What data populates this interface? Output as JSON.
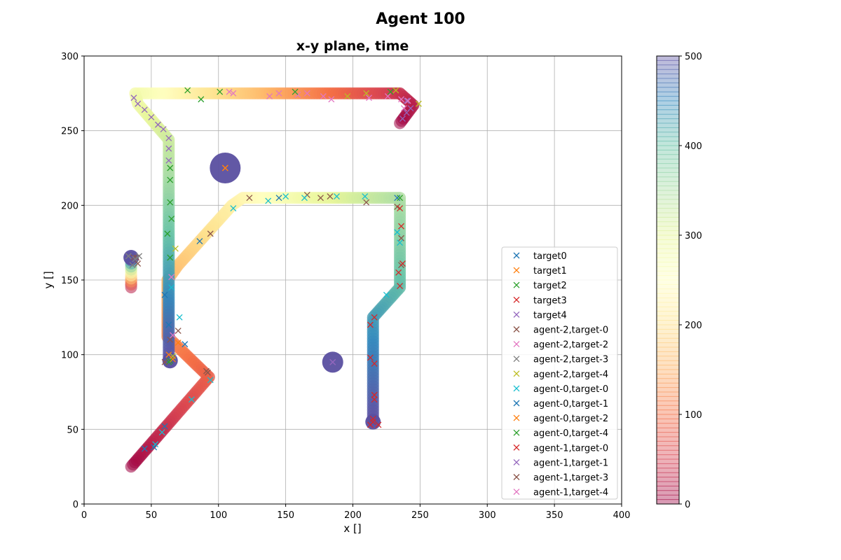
{
  "figure": {
    "suptitle": "Agent 100"
  },
  "chart_data": {
    "type": "scatter",
    "title": "x-y plane, time",
    "xlabel": "x []",
    "ylabel": "y []",
    "xlim": [
      0,
      400
    ],
    "ylim": [
      0,
      300
    ],
    "xticks": [
      0,
      50,
      100,
      150,
      200,
      250,
      300,
      350,
      400
    ],
    "yticks": [
      0,
      50,
      100,
      150,
      200,
      250,
      300
    ],
    "grid": true,
    "legend_position": "center-right",
    "colorbar": {
      "range": [
        0,
        500
      ],
      "ticks": [
        0,
        100,
        200,
        300,
        400,
        500
      ],
      "colormap": "Spectral",
      "alpha": 0.4
    },
    "trajectories": [
      {
        "time_range": [
          0,
          500
        ],
        "points": [
          [
            35,
            25
          ],
          [
            93,
            85
          ],
          [
            62,
            112
          ],
          [
            62,
            150
          ],
          [
            70,
            160
          ],
          [
            110,
            200
          ],
          [
            118,
            205
          ],
          [
            235,
            205
          ],
          [
            235,
            145
          ],
          [
            215,
            125
          ],
          [
            215,
            55
          ]
        ]
      },
      {
        "time_range": [
          0,
          500
        ],
        "points": [
          [
            235,
            255
          ],
          [
            245,
            267
          ],
          [
            235,
            275
          ],
          [
            38,
            275
          ],
          [
            40,
            268
          ],
          [
            63,
            244
          ],
          [
            63,
            95
          ]
        ]
      },
      {
        "time_range": [
          0,
          500
        ],
        "points": [
          [
            35,
            145
          ],
          [
            35,
            165
          ]
        ]
      }
    ],
    "target_discs": [
      {
        "x": 105,
        "y": 225,
        "color": "#5a4fa0"
      },
      {
        "x": 185,
        "y": 95,
        "color": "#5a4fa0"
      },
      {
        "x": 35,
        "y": 165,
        "color": "#5a4fa0"
      },
      {
        "x": 64,
        "y": 96,
        "color": "#5a4fa0"
      },
      {
        "x": 215,
        "y": 55,
        "color": "#5a4fa0"
      }
    ],
    "series": [
      {
        "name": "target0",
        "color": "#1f77b4",
        "points": []
      },
      {
        "name": "target1",
        "color": "#ff7f0e",
        "points": [
          [
            105,
            225
          ]
        ]
      },
      {
        "name": "target2",
        "color": "#2ca02c",
        "points": [
          [
            64,
            96
          ]
        ]
      },
      {
        "name": "target3",
        "color": "#d62728",
        "points": [
          [
            215,
            55
          ]
        ]
      },
      {
        "name": "target4",
        "color": "#9467bd",
        "points": [
          [
            185,
            95
          ]
        ]
      },
      {
        "name": "agent-2,target-0",
        "color": "#8c564b",
        "points": [
          [
            94,
            181
          ],
          [
            123,
            205
          ],
          [
            166,
            207
          ],
          [
            176,
            205
          ],
          [
            183,
            206
          ],
          [
            210,
            202
          ],
          [
            233,
            199
          ],
          [
            236,
            178
          ],
          [
            236,
            160
          ],
          [
            37,
            165
          ],
          [
            40,
            161
          ],
          [
            39,
            165
          ],
          [
            70,
            116
          ],
          [
            91,
            89
          ]
        ]
      },
      {
        "name": "agent-2,target-2",
        "color": "#e377c2",
        "points": [
          [
            108,
            276
          ],
          [
            111,
            275
          ],
          [
            138,
            273
          ],
          [
            145,
            275
          ],
          [
            159,
            274
          ],
          [
            166,
            275
          ],
          [
            178,
            273
          ],
          [
            184,
            271
          ],
          [
            212,
            272
          ],
          [
            226,
            273
          ],
          [
            236,
            271
          ]
        ]
      },
      {
        "name": "agent-2,target-3",
        "color": "#7f7f7f",
        "points": [
          [
            33,
            166
          ],
          [
            36,
            160
          ],
          [
            38,
            164
          ],
          [
            41,
            166
          ]
        ]
      },
      {
        "name": "agent-2,target-4",
        "color": "#bcbd22",
        "points": [
          [
            66,
            99
          ],
          [
            68,
            171
          ],
          [
            196,
            273
          ],
          [
            210,
            275
          ],
          [
            232,
            277
          ],
          [
            249,
            268
          ]
        ]
      },
      {
        "name": "agent-0,target-0",
        "color": "#17becf",
        "points": [
          [
            65,
            145
          ],
          [
            111,
            198
          ],
          [
            137,
            203
          ],
          [
            150,
            206
          ],
          [
            164,
            205
          ],
          [
            188,
            206
          ],
          [
            209,
            206
          ],
          [
            233,
            182
          ],
          [
            235,
            175
          ],
          [
            225,
            140
          ],
          [
            71,
            125
          ],
          [
            94,
            83
          ],
          [
            80,
            70
          ],
          [
            58,
            48
          ],
          [
            53,
            40
          ]
        ]
      },
      {
        "name": "agent-0,target-1",
        "color": "#1f77b4",
        "points": [
          [
            86,
            176
          ],
          [
            145,
            205
          ],
          [
            233,
            205
          ],
          [
            60,
            140
          ],
          [
            63,
            120
          ],
          [
            75,
            107
          ],
          [
            60,
            52
          ],
          [
            45,
            37
          ],
          [
            52,
            38
          ]
        ]
      },
      {
        "name": "agent-0,target-2",
        "color": "#ff7f0e",
        "points": [
          [
            105,
            225
          ],
          [
            63,
            100
          ],
          [
            66,
            97
          ],
          [
            70,
            108
          ]
        ]
      },
      {
        "name": "agent-0,target-4",
        "color": "#2ca02c",
        "points": [
          [
            64,
            225
          ],
          [
            64,
            217
          ],
          [
            64,
            202
          ],
          [
            65,
            191
          ],
          [
            62,
            181
          ],
          [
            64,
            165
          ],
          [
            63,
            95
          ],
          [
            77,
            277
          ],
          [
            87,
            271
          ],
          [
            101,
            276
          ],
          [
            157,
            276
          ],
          [
            228,
            276
          ],
          [
            235,
            205
          ]
        ]
      },
      {
        "name": "agent-1,target-0",
        "color": "#d62728",
        "points": [
          [
            213,
            120
          ],
          [
            216,
            125
          ],
          [
            213,
            98
          ],
          [
            216,
            94
          ],
          [
            216,
            73
          ],
          [
            216,
            70
          ],
          [
            213,
            53
          ],
          [
            219,
            53
          ],
          [
            215,
            57
          ],
          [
            237,
            161
          ],
          [
            236,
            186
          ],
          [
            234,
            155
          ],
          [
            235,
            198
          ],
          [
            235,
            146
          ]
        ]
      },
      {
        "name": "agent-1,target-1",
        "color": "#9467bd",
        "points": [
          [
            185,
            95
          ],
          [
            37,
            272
          ],
          [
            40,
            268
          ],
          [
            45,
            264
          ],
          [
            50,
            259
          ],
          [
            55,
            254
          ],
          [
            59,
            251
          ],
          [
            63,
            245
          ],
          [
            63,
            238
          ],
          [
            63,
            230
          ],
          [
            240,
            270
          ],
          [
            243,
            265
          ],
          [
            237,
            258
          ],
          [
            240,
            262
          ]
        ]
      },
      {
        "name": "agent-1,target-3",
        "color": "#8c564b",
        "points": [
          [
            60,
            95
          ],
          [
            64,
            110
          ],
          [
            92,
            88
          ]
        ]
      },
      {
        "name": "agent-1,target-4",
        "color": "#e377c2",
        "points": [
          [
            65,
            152
          ],
          [
            66,
            113
          ],
          [
            241,
            270
          ],
          [
            238,
            265
          ]
        ]
      }
    ]
  }
}
